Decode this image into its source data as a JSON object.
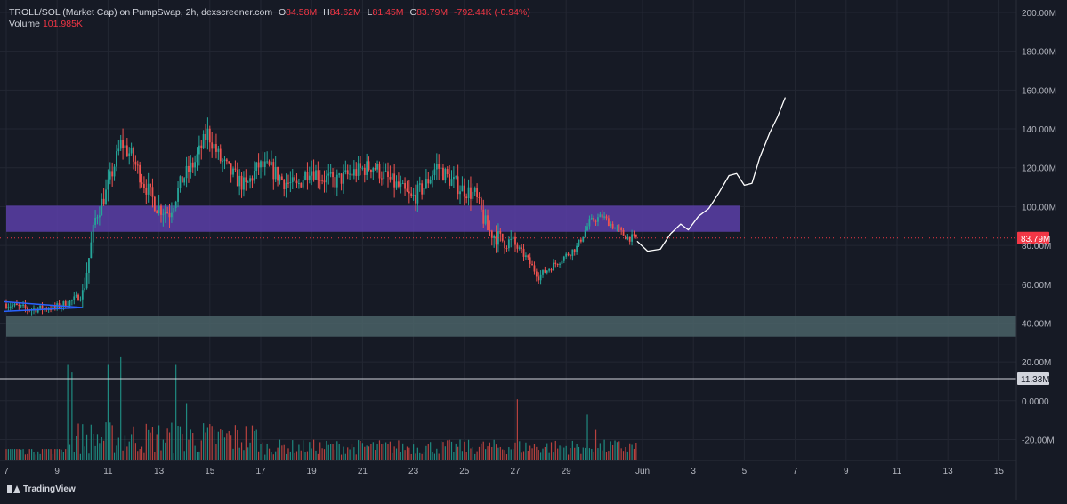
{
  "legend": {
    "title": "TROLL/SOL (Market Cap) on PumpSwap, 2h, dexscreener.com",
    "o_label": "O",
    "o_value": "84.58M",
    "h_label": "H",
    "h_value": "84.62M",
    "l_label": "L",
    "l_value": "81.45M",
    "c_label": "C",
    "c_value": "83.79M",
    "change": "-792.44K (-0.94%)",
    "volume_label": "Volume",
    "volume_value": "101.985K"
  },
  "price_axis": {
    "ticks": [
      "200.00M",
      "180.00M",
      "160.00M",
      "140.00M",
      "120.00M",
      "100.00M",
      "80.00M",
      "60.00M",
      "40.00M",
      "20.00M",
      "0.0000",
      "-20.00M"
    ],
    "tick_values": [
      200,
      180,
      160,
      140,
      120,
      100,
      80,
      60,
      40,
      20,
      0,
      -20
    ],
    "current_price_label": "83.79M",
    "current_price": 83.79,
    "crosshair_label": "11.33M",
    "crosshair_value": 11.33
  },
  "time_axis": {
    "ticks": [
      "7",
      "9",
      "11",
      "13",
      "15",
      "17",
      "19",
      "21",
      "23",
      "25",
      "27",
      "29",
      "Jun",
      "3",
      "5",
      "7",
      "9",
      "11",
      "13",
      "15"
    ],
    "tick_days": [
      7,
      9,
      11,
      13,
      15,
      17,
      19,
      21,
      23,
      25,
      27,
      29,
      32,
      34,
      36,
      38,
      40,
      42,
      44,
      46
    ]
  },
  "footer": {
    "brand": "TradingView"
  },
  "colors": {
    "background": "#161a25",
    "up": "#26a69a",
    "down": "#ef5350",
    "resistance_zone": "#5b3fa8",
    "support_zone": "#4a6367",
    "price_label_bg": "#f23645",
    "trend_lines": "#2962ff",
    "projection": "#ffffff"
  },
  "chart_data": {
    "type": "candlestick",
    "units": "USD market cap (millions)",
    "interval": "2h",
    "x_unit": "day of May (32 = Jun 1)",
    "y_range": [
      -30,
      205
    ],
    "zones": [
      {
        "name": "",
        "low": 87,
        "high": 100.5
      },
      {
        "name": "",
        "low": 33,
        "high": 43.5
      }
    ],
    "ohlc_keypoints": [
      [
        7,
        50
      ],
      [
        8,
        47
      ],
      [
        9,
        48
      ],
      [
        9.6,
        51
      ],
      [
        10.1,
        55
      ],
      [
        10.6,
        95
      ],
      [
        11.0,
        107
      ],
      [
        11.3,
        120
      ],
      [
        11.6,
        133
      ],
      [
        12.0,
        126
      ],
      [
        12.5,
        112
      ],
      [
        13.0,
        100
      ],
      [
        13.5,
        97
      ],
      [
        14.0,
        114
      ],
      [
        14.5,
        123
      ],
      [
        15.0,
        138
      ],
      [
        15.5,
        124
      ],
      [
        16.0,
        116
      ],
      [
        16.5,
        110
      ],
      [
        17.0,
        121
      ],
      [
        17.5,
        119
      ],
      [
        18.0,
        113
      ],
      [
        18.5,
        110
      ],
      [
        19.0,
        120
      ],
      [
        19.5,
        115
      ],
      [
        20.0,
        113
      ],
      [
        20.5,
        116
      ],
      [
        21.0,
        119
      ],
      [
        21.5,
        121
      ],
      [
        22.0,
        115
      ],
      [
        22.5,
        110
      ],
      [
        23.0,
        104
      ],
      [
        23.5,
        110
      ],
      [
        24.0,
        121
      ],
      [
        24.5,
        114
      ],
      [
        25.0,
        109
      ],
      [
        25.5,
        106
      ],
      [
        26.0,
        88
      ],
      [
        26.5,
        83
      ],
      [
        27.0,
        81
      ],
      [
        27.5,
        74
      ],
      [
        28.0,
        64
      ],
      [
        28.5,
        69
      ],
      [
        29.0,
        74
      ],
      [
        29.5,
        79
      ],
      [
        30.0,
        92
      ],
      [
        30.5,
        95
      ],
      [
        31.0,
        89
      ],
      [
        31.5,
        84
      ],
      [
        31.8,
        83.8
      ]
    ],
    "volume": {
      "spikes": [
        [
          9.4,
          25
        ],
        [
          9.6,
          23
        ],
        [
          11.0,
          25
        ],
        [
          11.5,
          27
        ],
        [
          13.7,
          25
        ],
        [
          14.1,
          15
        ],
        [
          27.1,
          16
        ],
        [
          29.8,
          12
        ],
        [
          30.2,
          8
        ]
      ],
      "baseline": 1.5
    },
    "projection_path": [
      [
        31.8,
        82
      ],
      [
        32.2,
        77
      ],
      [
        32.7,
        78
      ],
      [
        33.1,
        86
      ],
      [
        33.5,
        91
      ],
      [
        33.8,
        88
      ],
      [
        34.2,
        95
      ],
      [
        34.6,
        99
      ],
      [
        35.0,
        107
      ],
      [
        35.4,
        116
      ],
      [
        35.7,
        117
      ],
      [
        36.0,
        111
      ],
      [
        36.3,
        112
      ],
      [
        36.6,
        125
      ],
      [
        37.0,
        138
      ],
      [
        37.3,
        146
      ],
      [
        37.6,
        156
      ]
    ],
    "triangle": {
      "upper": [
        [
          6.9,
          51
        ],
        [
          9.5,
          48
        ]
      ],
      "lower": [
        [
          6.9,
          46
        ],
        [
          9.5,
          48
        ]
      ]
    }
  }
}
